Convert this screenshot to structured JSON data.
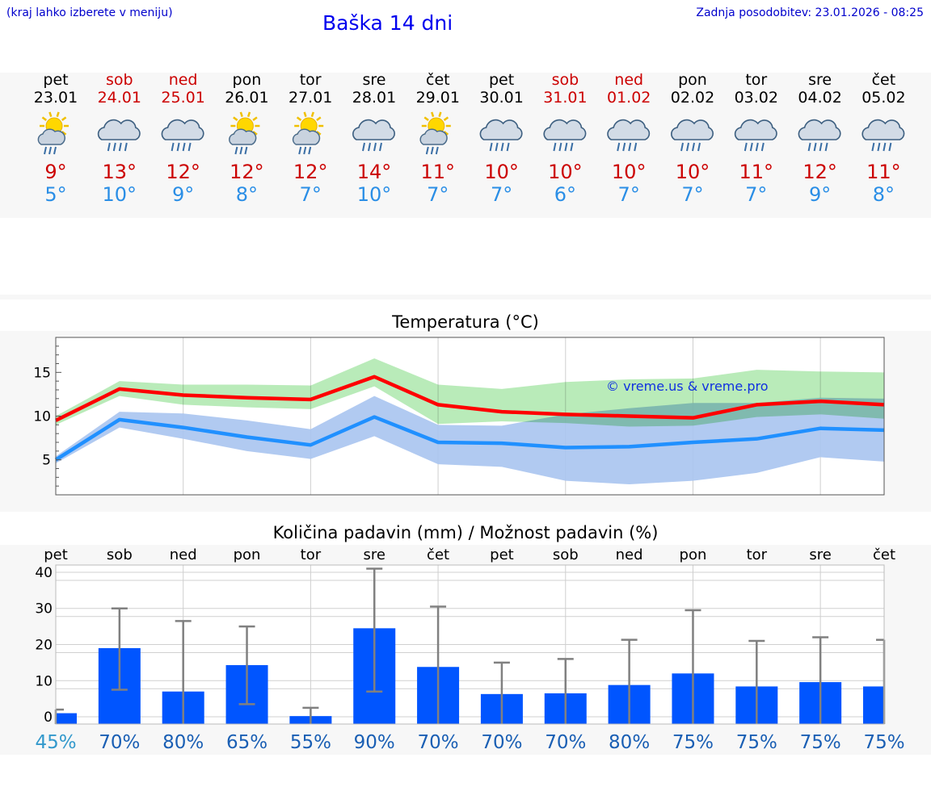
{
  "header": {
    "left_note": "(kraj lahko izberete v meniju)",
    "title": "Baška 14 dni",
    "updated": "Zadnja posodobitev: 23.01.2026 - 08:25"
  },
  "days": [
    {
      "name": "pet",
      "date": "23.01",
      "hi": "9°",
      "lo": "5°",
      "icon": "sun-cloud-rain-icon",
      "weekend": false
    },
    {
      "name": "sob",
      "date": "24.01",
      "hi": "13°",
      "lo": "10°",
      "icon": "cloud-rain-icon",
      "weekend": true
    },
    {
      "name": "ned",
      "date": "25.01",
      "hi": "12°",
      "lo": "9°",
      "icon": "cloud-rain-icon",
      "weekend": true
    },
    {
      "name": "pon",
      "date": "26.01",
      "hi": "12°",
      "lo": "8°",
      "icon": "sun-cloud-rain-icon",
      "weekend": false
    },
    {
      "name": "tor",
      "date": "27.01",
      "hi": "12°",
      "lo": "7°",
      "icon": "sun-cloud-rain-icon",
      "weekend": false
    },
    {
      "name": "sre",
      "date": "28.01",
      "hi": "14°",
      "lo": "10°",
      "icon": "cloud-rain-icon",
      "weekend": false
    },
    {
      "name": "čet",
      "date": "29.01",
      "hi": "11°",
      "lo": "7°",
      "icon": "sun-cloud-rain-icon",
      "weekend": false
    },
    {
      "name": "pet",
      "date": "30.01",
      "hi": "10°",
      "lo": "7°",
      "icon": "cloud-rain-icon",
      "weekend": false
    },
    {
      "name": "sob",
      "date": "31.01",
      "hi": "10°",
      "lo": "6°",
      "icon": "cloud-rain-icon",
      "weekend": true
    },
    {
      "name": "ned",
      "date": "01.02",
      "hi": "10°",
      "lo": "7°",
      "icon": "cloud-rain-icon",
      "weekend": true
    },
    {
      "name": "pon",
      "date": "02.02",
      "hi": "10°",
      "lo": "7°",
      "icon": "cloud-rain-icon",
      "weekend": false
    },
    {
      "name": "tor",
      "date": "03.02",
      "hi": "11°",
      "lo": "7°",
      "icon": "cloud-rain-icon",
      "weekend": false
    },
    {
      "name": "sre",
      "date": "04.02",
      "hi": "12°",
      "lo": "9°",
      "icon": "cloud-rain-icon",
      "weekend": false
    },
    {
      "name": "čet",
      "date": "05.02",
      "hi": "11°",
      "lo": "8°",
      "icon": "cloud-rain-icon",
      "weekend": false
    }
  ],
  "colors": {
    "hi": "#ff0000",
    "lo": "#2090ff",
    "hi_band": "#a8e6a8",
    "lo_band": "#a8c4f0",
    "overlap": "#7cc2a6",
    "bar": "#0055ff",
    "error": "#808080",
    "pct_first": "#3399cc",
    "pct": "#1a5fb4",
    "weekend": "#cc0000"
  },
  "chart_data": [
    {
      "type": "line",
      "title": "Temperatura (°C)",
      "watermark": "© vreme.us & vreme.pro",
      "ylim": [
        1,
        19
      ],
      "yticks": [
        5,
        10,
        15
      ],
      "series": [
        {
          "name": "max",
          "values": [
            9.5,
            13.1,
            12.4,
            12.1,
            11.9,
            14.5,
            11.3,
            10.5,
            10.2,
            10.0,
            9.8,
            11.3,
            11.7,
            11.3
          ],
          "band_low": [
            9.0,
            12.3,
            11.3,
            11.0,
            10.8,
            13.4,
            9.1,
            9.4,
            9.2,
            8.8,
            8.9,
            9.9,
            10.2,
            9.7
          ],
          "band_high": [
            10.0,
            14.0,
            13.6,
            13.6,
            13.5,
            16.6,
            13.6,
            13.1,
            13.9,
            14.2,
            14.3,
            15.3,
            15.1,
            15.0
          ]
        },
        {
          "name": "min",
          "values": [
            5.0,
            9.6,
            8.7,
            7.6,
            6.7,
            9.9,
            7.0,
            6.9,
            6.4,
            6.5,
            7.0,
            7.4,
            8.6,
            8.4
          ],
          "band_low": [
            4.6,
            8.7,
            7.4,
            6.0,
            5.1,
            7.7,
            4.5,
            4.2,
            2.6,
            2.2,
            2.6,
            3.5,
            5.3,
            4.8
          ],
          "band_high": [
            5.4,
            10.5,
            10.3,
            9.5,
            8.5,
            12.3,
            9.0,
            8.9,
            10.2,
            10.9,
            11.5,
            11.5,
            12.1,
            12.0
          ]
        }
      ]
    },
    {
      "type": "bar",
      "title": "Količina padavin (mm) / Možnost padavin (%)",
      "categories": [
        "pet",
        "sob",
        "ned",
        "pon",
        "tor",
        "sre",
        "čet",
        "pet",
        "sob",
        "ned",
        "pon",
        "tor",
        "sre",
        "čet"
      ],
      "ylim": [
        -2,
        42
      ],
      "yticks": [
        0,
        10,
        20,
        30,
        40
      ],
      "values": [
        1,
        19,
        7,
        14.3,
        0.2,
        24.5,
        13.8,
        6.3,
        6.5,
        8.8,
        12,
        8.4,
        9.6,
        8.4
      ],
      "err_low": [
        0,
        7.5,
        0,
        3.5,
        0,
        7,
        0,
        0,
        0,
        0,
        0,
        0,
        0,
        0
      ],
      "err_high": [
        2,
        30,
        26.5,
        25,
        2.5,
        41,
        30.5,
        15,
        16,
        21.3,
        29.5,
        21,
        22,
        21.3
      ],
      "probability": [
        "45%",
        "70%",
        "80%",
        "65%",
        "55%",
        "90%",
        "70%",
        "70%",
        "70%",
        "80%",
        "75%",
        "75%",
        "75%",
        "75%"
      ]
    }
  ]
}
